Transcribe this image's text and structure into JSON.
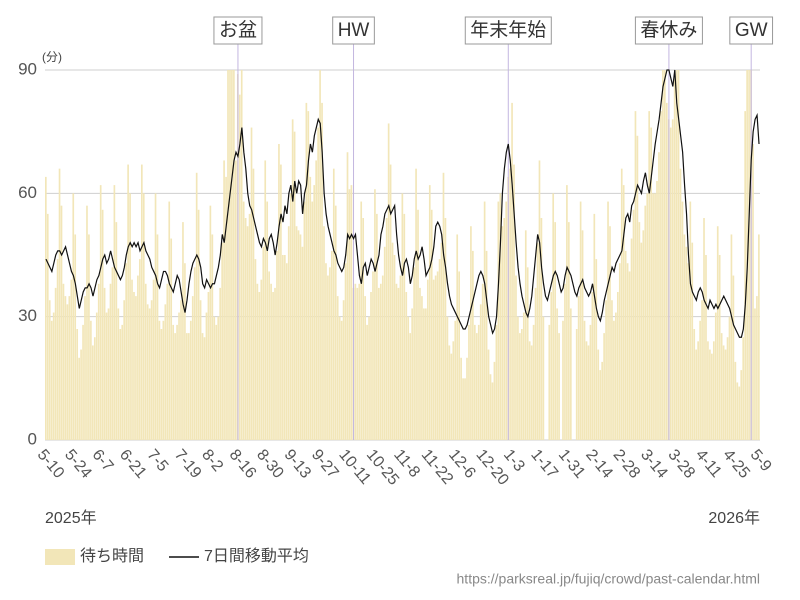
{
  "chart_data": {
    "type": "bar-line",
    "y_unit": "(分)",
    "ylim": [
      0,
      90
    ],
    "yticks": [
      0,
      30,
      60,
      90
    ],
    "grid": true,
    "annotations": [
      "お盆",
      "HW",
      "年末年始",
      "春休み",
      "GW"
    ],
    "year_start": "2025年",
    "year_end": "2026年",
    "source": "https://parksreal.jp/fujiq/crowd/past-calendar.html",
    "categories": [
      "5-10",
      null,
      null,
      null,
      null,
      null,
      null,
      null,
      null,
      null,
      null,
      null,
      null,
      null,
      "5-24",
      null,
      null,
      null,
      null,
      null,
      null,
      null,
      null,
      null,
      null,
      null,
      null,
      null,
      "6-7",
      null,
      null,
      null,
      null,
      null,
      null,
      null,
      null,
      null,
      null,
      null,
      null,
      null,
      "6-21",
      null,
      null,
      null,
      null,
      null,
      null,
      null,
      null,
      null,
      null,
      null,
      null,
      null,
      "7-5",
      null,
      null,
      null,
      null,
      null,
      null,
      null,
      null,
      null,
      null,
      null,
      null,
      null,
      "7-19",
      null,
      null,
      null,
      null,
      null,
      null,
      null,
      null,
      null,
      null,
      null,
      null,
      null,
      "8-2",
      null,
      null,
      null,
      null,
      null,
      null,
      null,
      null,
      null,
      null,
      null,
      null,
      null,
      "8-16",
      null,
      null,
      null,
      null,
      null,
      null,
      null,
      null,
      null,
      null,
      null,
      null,
      null,
      "8-30",
      null,
      null,
      null,
      null,
      null,
      null,
      null,
      null,
      null,
      null,
      null,
      null,
      null,
      "9-13",
      null,
      null,
      null,
      null,
      null,
      null,
      null,
      null,
      null,
      null,
      null,
      null,
      null,
      "9-27",
      null,
      null,
      null,
      null,
      null,
      null,
      null,
      null,
      null,
      null,
      null,
      null,
      null,
      "10-11",
      null,
      null,
      null,
      null,
      null,
      null,
      null,
      null,
      null,
      null,
      null,
      null,
      null,
      "10-25",
      null,
      null,
      null,
      null,
      null,
      null,
      null,
      null,
      null,
      null,
      null,
      null,
      null,
      "11-8",
      null,
      null,
      null,
      null,
      null,
      null,
      null,
      null,
      null,
      null,
      null,
      null,
      null,
      "11-22",
      null,
      null,
      null,
      null,
      null,
      null,
      null,
      null,
      null,
      null,
      null,
      null,
      null,
      "12-6",
      null,
      null,
      null,
      null,
      null,
      null,
      null,
      null,
      null,
      null,
      null,
      null,
      null,
      "12-20",
      null,
      null,
      null,
      null,
      null,
      null,
      null,
      null,
      null,
      null,
      null,
      null,
      null,
      "1-3",
      null,
      null,
      null,
      null,
      null,
      null,
      null,
      null,
      null,
      null,
      null,
      null,
      null,
      "1-17",
      null,
      null,
      null,
      null,
      null,
      null,
      null,
      null,
      null,
      null,
      null,
      null,
      null,
      "1-31",
      null,
      null,
      null,
      null,
      null,
      null,
      null,
      null,
      null,
      null,
      null,
      null,
      null,
      "2-14",
      null,
      null,
      null,
      null,
      null,
      null,
      null,
      null,
      null,
      null,
      null,
      null,
      null,
      "2-28",
      null,
      null,
      null,
      null,
      null,
      null,
      null,
      null,
      null,
      null,
      null,
      null,
      null,
      "3-14",
      null,
      null,
      null,
      null,
      null,
      null,
      null,
      null,
      null,
      null,
      null,
      null,
      null,
      "3-28",
      null,
      null,
      null,
      null,
      null,
      null,
      null,
      null,
      null,
      null,
      null,
      null,
      null,
      "4-11",
      null,
      null,
      null,
      null,
      null,
      null,
      null,
      null,
      null,
      null,
      null,
      null,
      null,
      "4-25",
      null,
      null,
      null,
      null,
      null,
      null,
      null,
      null,
      null,
      null,
      null,
      null,
      null,
      "5-9"
    ],
    "series": [
      {
        "name": "待ち時間",
        "kind": "bar",
        "color": "#f2e6b8",
        "values": [
          64,
          55,
          34,
          29,
          31,
          37,
          44,
          66,
          57,
          38,
          35,
          33,
          35,
          39,
          60,
          50,
          27,
          20,
          22,
          28,
          35,
          57,
          50,
          29,
          23,
          25,
          31,
          38,
          62,
          56,
          37,
          31,
          32,
          38,
          42,
          62,
          53,
          32,
          27,
          28,
          34,
          43,
          67,
          60,
          39,
          36,
          35,
          40,
          44,
          67,
          60,
          38,
          33,
          32,
          34,
          39,
          60,
          50,
          29,
          27,
          29,
          33,
          38,
          58,
          49,
          28,
          26,
          28,
          31,
          34,
          53,
          43,
          26,
          26,
          29,
          35,
          42,
          65,
          56,
          34,
          26,
          25,
          31,
          36,
          57,
          50,
          30,
          28,
          30,
          37,
          48,
          68,
          64,
          90,
          90,
          90,
          90,
          68,
          89,
          84,
          90,
          58,
          54,
          52,
          55,
          76,
          66,
          44,
          38,
          36,
          39,
          47,
          68,
          58,
          41,
          38,
          36,
          37,
          46,
          72,
          67,
          45,
          45,
          43,
          52,
          60,
          78,
          75,
          52,
          51,
          50,
          47,
          58,
          82,
          80,
          64,
          58,
          62,
          68,
          76,
          90,
          82,
          52,
          43,
          40,
          42,
          46,
          66,
          57,
          35,
          30,
          29,
          34,
          43,
          70,
          61,
          62,
          37,
          38,
          37,
          38,
          58,
          54,
          35,
          28,
          30,
          36,
          41,
          61,
          55,
          37,
          38,
          40,
          47,
          54,
          77,
          67,
          48,
          45,
          38,
          37,
          40,
          60,
          55,
          36,
          30,
          26,
          32,
          42,
          66,
          56,
          37,
          35,
          32,
          32,
          39,
          62,
          56,
          39,
          40,
          41,
          44,
          48,
          65,
          54,
          30,
          23,
          21,
          24,
          29,
          50,
          41,
          20,
          15,
          15,
          20,
          28,
          52,
          46,
          28,
          26,
          28,
          33,
          38,
          58,
          46,
          22,
          16,
          14,
          19,
          28,
          58,
          60,
          52,
          54,
          58,
          64,
          66,
          82,
          67,
          40,
          30,
          26,
          27,
          31,
          51,
          42,
          24,
          23,
          28,
          37,
          48,
          68,
          54,
          30,
          0,
          0,
          28,
          36,
          60,
          53,
          32,
          26,
          0,
          29,
          38,
          62,
          53,
          32,
          0,
          0,
          27,
          35,
          58,
          51,
          29,
          24,
          23,
          28,
          36,
          55,
          44,
          22,
          17,
          19,
          26,
          34,
          58,
          52,
          34,
          29,
          31,
          36,
          43,
          66,
          62,
          46,
          43,
          41,
          49,
          56,
          80,
          74,
          53,
          48,
          51,
          57,
          60,
          80,
          76,
          60,
          60,
          63,
          70,
          80,
          90,
          90,
          82,
          78,
          76,
          78,
          88,
          90,
          90,
          66,
          58,
          50,
          47,
          43,
          58,
          48,
          27,
          22,
          24,
          29,
          34,
          54,
          45,
          24,
          22,
          21,
          24,
          31,
          52,
          45,
          26,
          23,
          22,
          25,
          30,
          50,
          40,
          19,
          14,
          13,
          17,
          25,
          80,
          90,
          90,
          90,
          72,
          32,
          35,
          50
        ]
      },
      {
        "name": "7日間移動平均",
        "kind": "line",
        "color": "#111111",
        "values": [
          44,
          43,
          42,
          41,
          43,
          45,
          46,
          46,
          45,
          46,
          47,
          45,
          43,
          41,
          40,
          38,
          35,
          32,
          34,
          36,
          37,
          37,
          38,
          37,
          35,
          37,
          39,
          40,
          42,
          44,
          45,
          43,
          44,
          46,
          44,
          42,
          41,
          40,
          39,
          40,
          42,
          45,
          47,
          48,
          47,
          48,
          47,
          48,
          46,
          47,
          48,
          46,
          45,
          44,
          42,
          41,
          40,
          38,
          37,
          39,
          41,
          41,
          40,
          38,
          37,
          36,
          38,
          40,
          39,
          36,
          33,
          31,
          34,
          38,
          41,
          43,
          44,
          45,
          44,
          42,
          38,
          37,
          39,
          38,
          37,
          38,
          38,
          40,
          42,
          45,
          50,
          48,
          52,
          56,
          60,
          64,
          68,
          70,
          69,
          72,
          76,
          70,
          66,
          60,
          57,
          56,
          54,
          52,
          50,
          48,
          47,
          49,
          48,
          46,
          49,
          50,
          48,
          45,
          48,
          52,
          55,
          53,
          57,
          55,
          60,
          62,
          58,
          63,
          60,
          63,
          62,
          55,
          60,
          62,
          68,
          72,
          70,
          74,
          76,
          78,
          77,
          70,
          60,
          55,
          52,
          50,
          48,
          46,
          45,
          43,
          42,
          41,
          42,
          45,
          50,
          49,
          50,
          49,
          50,
          45,
          40,
          38,
          42,
          43,
          40,
          42,
          44,
          43,
          41,
          43,
          45,
          50,
          52,
          55,
          56,
          57,
          55,
          56,
          57,
          50,
          45,
          42,
          40,
          43,
          44,
          42,
          38,
          40,
          44,
          46,
          44,
          45,
          47,
          44,
          40,
          41,
          42,
          44,
          47,
          52,
          53,
          52,
          50,
          45,
          42,
          38,
          35,
          33,
          32,
          31,
          30,
          29,
          28,
          27,
          27,
          28,
          30,
          32,
          34,
          36,
          38,
          40,
          41,
          40,
          38,
          34,
          30,
          28,
          26,
          27,
          30,
          38,
          48,
          60,
          66,
          70,
          72,
          68,
          62,
          55,
          48,
          42,
          38,
          35,
          33,
          31,
          30,
          32,
          35,
          40,
          45,
          50,
          48,
          42,
          38,
          35,
          34,
          36,
          38,
          40,
          41,
          40,
          38,
          36,
          37,
          40,
          42,
          41,
          40,
          38,
          36,
          35,
          37,
          38,
          39,
          37,
          36,
          35,
          36,
          38,
          35,
          32,
          30,
          29,
          31,
          34,
          36,
          38,
          40,
          42,
          41,
          43,
          44,
          45,
          46,
          50,
          54,
          55,
          53,
          57,
          58,
          60,
          62,
          61,
          60,
          63,
          65,
          62,
          60,
          64,
          68,
          72,
          75,
          78,
          82,
          86,
          88,
          90,
          90,
          88,
          86,
          90,
          82,
          78,
          74,
          70,
          62,
          55,
          45,
          38,
          36,
          35,
          34,
          36,
          37,
          36,
          34,
          33,
          32,
          34,
          33,
          32,
          33,
          32,
          33,
          34,
          35,
          34,
          33,
          32,
          30,
          28,
          27,
          26,
          25,
          25,
          27,
          33,
          42,
          55,
          68,
          75,
          78,
          79,
          72
        ]
      }
    ]
  }
}
